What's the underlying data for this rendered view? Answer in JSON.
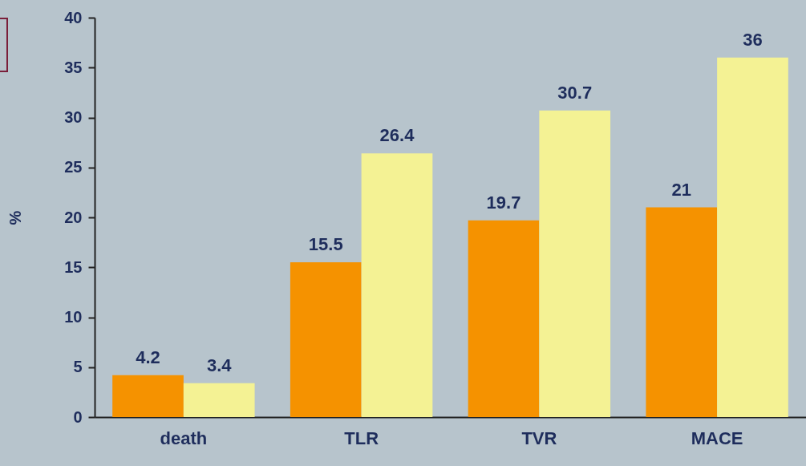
{
  "chart_data": {
    "type": "bar",
    "ylabel": "%",
    "categories": [
      "death",
      "TLR",
      "TVR",
      "MACE"
    ],
    "series": [
      {
        "color": "#f59200",
        "values": [
          4.2,
          15.5,
          19.7,
          21
        ]
      },
      {
        "color": "#f4f294",
        "values": [
          3.4,
          26.4,
          30.7,
          36
        ]
      }
    ],
    "ylim": [
      0,
      40
    ],
    "yticks": [
      0,
      5,
      10,
      15,
      20,
      25,
      30,
      35,
      40
    ],
    "grid": false,
    "legend": false,
    "data_labels": true
  }
}
